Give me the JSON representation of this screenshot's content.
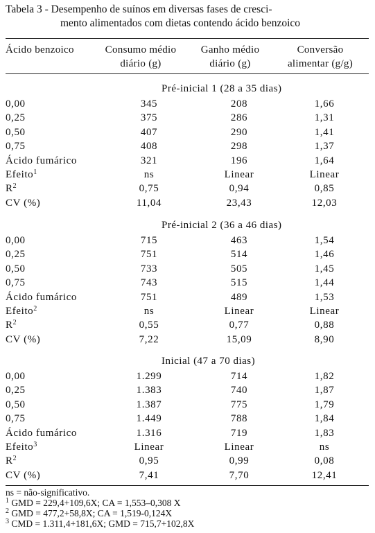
{
  "caption": {
    "line1": "Tabela 3 - Desempenho de suínos em diversas fases de cresci-",
    "line2": "mento alimentados com dietas contendo ácido benzoico"
  },
  "headers": {
    "col0": "Ácido benzoico",
    "col1_a": "Consumo médio",
    "col1_b": "diário (g)",
    "col2_a": "Ganho médio",
    "col2_b": "diário (g)",
    "col3_a": "Conversão",
    "col3_b": "alimentar (g/g)"
  },
  "sections": [
    {
      "title": "Pré-inicial 1 (28 a 35 dias)",
      "rows": [
        {
          "label": "0,00",
          "cmd": "345",
          "gmd": "208",
          "ca": "1,66"
        },
        {
          "label": "0,25",
          "cmd": "375",
          "gmd": "286",
          "ca": "1,31"
        },
        {
          "label": "0,50",
          "cmd": "407",
          "gmd": "290",
          "ca": "1,41"
        },
        {
          "label": "0,75",
          "cmd": "408",
          "gmd": "298",
          "ca": "1,37"
        },
        {
          "label": "Ácido fumárico",
          "cmd": "321",
          "gmd": "196",
          "ca": "1,64"
        }
      ],
      "efeito": {
        "label": "Efeito",
        "sup": "1",
        "cmd": "ns",
        "gmd": "Linear",
        "ca": "Linear"
      },
      "r2": {
        "label": "R",
        "sup": "2",
        "cmd": "0,75",
        "gmd": "0,94",
        "ca": "0,85"
      },
      "cv": {
        "label": "CV (%)",
        "cmd": "11,04",
        "gmd": "23,43",
        "ca": "12,03"
      }
    },
    {
      "title": "Pré-inicial 2 (36 a 46 dias)",
      "rows": [
        {
          "label": "0,00",
          "cmd": "715",
          "gmd": "463",
          "ca": "1,54"
        },
        {
          "label": "0,25",
          "cmd": "751",
          "gmd": "514",
          "ca": "1,46"
        },
        {
          "label": "0,50",
          "cmd": "733",
          "gmd": "505",
          "ca": "1,45"
        },
        {
          "label": "0,75",
          "cmd": "743",
          "gmd": "515",
          "ca": "1,44"
        },
        {
          "label": "Ácido fumárico",
          "cmd": "751",
          "gmd": "489",
          "ca": "1,53"
        }
      ],
      "efeito": {
        "label": "Efeito",
        "sup": "2",
        "cmd": "ns",
        "gmd": "Linear",
        "ca": "Linear"
      },
      "r2": {
        "label": "R",
        "sup": "2",
        "cmd": "0,55",
        "gmd": "0,77",
        "ca": "0,88"
      },
      "cv": {
        "label": "CV (%)",
        "cmd": "7,22",
        "gmd": "15,09",
        "ca": "8,90"
      }
    },
    {
      "title": "Inicial (47 a 70 dias)",
      "rows": [
        {
          "label": "0,00",
          "cmd": "1.299",
          "gmd": "714",
          "ca": "1,82"
        },
        {
          "label": "0,25",
          "cmd": "1.383",
          "gmd": "740",
          "ca": "1,87"
        },
        {
          "label": "0,50",
          "cmd": "1.387",
          "gmd": "775",
          "ca": "1,79"
        },
        {
          "label": "0,75",
          "cmd": "1.449",
          "gmd": "788",
          "ca": "1,84"
        },
        {
          "label": "Ácido fumárico",
          "cmd": "1.316",
          "gmd": "719",
          "ca": "1,83"
        }
      ],
      "efeito": {
        "label": "Efeito",
        "sup": "3",
        "cmd": "Linear",
        "gmd": "Linear",
        "ca": "ns"
      },
      "r2": {
        "label": "R",
        "sup": "2",
        "cmd": "0,95",
        "gmd": "0,99",
        "ca": "0,08"
      },
      "cv": {
        "label": "CV (%)",
        "cmd": "7,41",
        "gmd": "7,70",
        "ca": "12,41"
      }
    }
  ],
  "notes": {
    "ns": "ns = não-significativo.",
    "n1_sup": "1",
    "n1": " GMD = 229,4+109,6X; CA = 1,553–0,308 X",
    "n2_sup": "2",
    "n2": " GMD = 477,2+58,8X;  CA = 1,519-0,124X",
    "n3_sup": "3",
    "n3": " CMD = 1.311,4+181,6X; GMD = 715,7+102,8X"
  }
}
